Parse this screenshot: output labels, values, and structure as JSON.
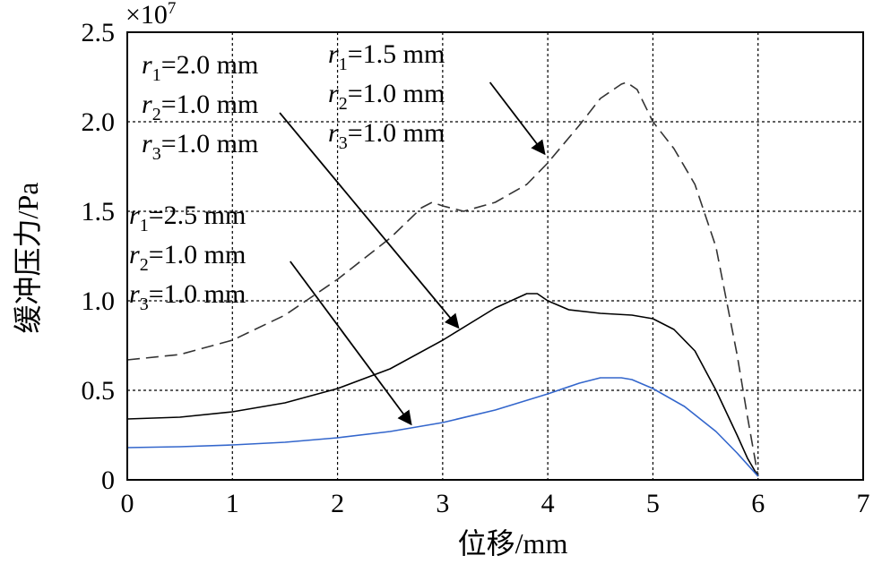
{
  "chart_data": {
    "type": "line",
    "title": "",
    "xlabel": "位移/mm",
    "ylabel": "缓冲压力/Pa",
    "y_multiplier": "×10",
    "y_multiplier_exp": "7",
    "xlim": [
      0,
      7
    ],
    "ylim": [
      0,
      2.5
    ],
    "x_ticks": [
      "0",
      "1",
      "2",
      "3",
      "4",
      "5",
      "6",
      "7"
    ],
    "y_ticks": [
      "0",
      "0.5",
      "1.0",
      "1.5",
      "2.0",
      "2.5"
    ],
    "grid": true,
    "series": [
      {
        "color": "#333333",
        "style": "dashed",
        "x": [
          0,
          0.5,
          1,
          1.5,
          2,
          2.5,
          2.8,
          2.9,
          3.0,
          3.2,
          3.5,
          3.8,
          4.0,
          4.3,
          4.5,
          4.7,
          4.75,
          4.85,
          5.0,
          5.2,
          5.4,
          5.6,
          5.8,
          5.9,
          6.0
        ],
        "y": [
          0.67,
          0.7,
          0.78,
          0.92,
          1.12,
          1.35,
          1.52,
          1.55,
          1.53,
          1.5,
          1.55,
          1.65,
          1.77,
          1.98,
          2.13,
          2.21,
          2.22,
          2.18,
          2.0,
          1.85,
          1.65,
          1.3,
          0.7,
          0.35,
          0.02
        ]
      },
      {
        "color": "#000000",
        "style": "solid",
        "x": [
          0,
          0.5,
          1,
          1.5,
          2,
          2.5,
          3,
          3.5,
          3.8,
          3.9,
          4.0,
          4.2,
          4.5,
          4.8,
          5.0,
          5.2,
          5.4,
          5.6,
          5.8,
          5.9,
          6.0
        ],
        "y": [
          0.34,
          0.35,
          0.38,
          0.43,
          0.51,
          0.62,
          0.78,
          0.96,
          1.04,
          1.04,
          1.0,
          0.95,
          0.93,
          0.92,
          0.9,
          0.84,
          0.72,
          0.5,
          0.25,
          0.12,
          0.02
        ]
      },
      {
        "color": "#3366cc",
        "style": "solid",
        "x": [
          0,
          0.5,
          1,
          1.5,
          2,
          2.5,
          3,
          3.5,
          4,
          4.3,
          4.5,
          4.7,
          4.8,
          5.0,
          5.3,
          5.6,
          5.8,
          6.0
        ],
        "y": [
          0.18,
          0.185,
          0.195,
          0.21,
          0.235,
          0.27,
          0.32,
          0.39,
          0.48,
          0.54,
          0.57,
          0.57,
          0.56,
          0.51,
          0.41,
          0.27,
          0.15,
          0.02
        ]
      }
    ],
    "annotations": [
      {
        "lines": [
          {
            "sym": "r",
            "sub": "1",
            "rest": "=1.5 mm"
          },
          {
            "sym": "r",
            "sub": "2",
            "rest": "=1.0 mm"
          },
          {
            "sym": "r",
            "sub": "3",
            "rest": "=1.0 mm"
          }
        ],
        "arrow_from": [
          3.45,
          2.22
        ],
        "arrow_to": [
          3.97,
          1.82
        ]
      },
      {
        "lines": [
          {
            "sym": "r",
            "sub": "1",
            "rest": "=2.0 mm"
          },
          {
            "sym": "r",
            "sub": "2",
            "rest": "=1.0 mm"
          },
          {
            "sym": "r",
            "sub": "3",
            "rest": "=1.0 mm"
          }
        ],
        "arrow_from": [
          1.45,
          2.05
        ],
        "arrow_to": [
          3.15,
          0.85
        ]
      },
      {
        "lines": [
          {
            "sym": "r",
            "sub": "1",
            "rest": "=2.5 mm"
          },
          {
            "sym": "r",
            "sub": "2",
            "rest": "=1.0 mm"
          },
          {
            "sym": "r",
            "sub": "3",
            "rest": "=1.0 mm"
          }
        ],
        "arrow_from": [
          1.55,
          1.22
        ],
        "arrow_to": [
          2.7,
          0.31
        ]
      }
    ]
  }
}
